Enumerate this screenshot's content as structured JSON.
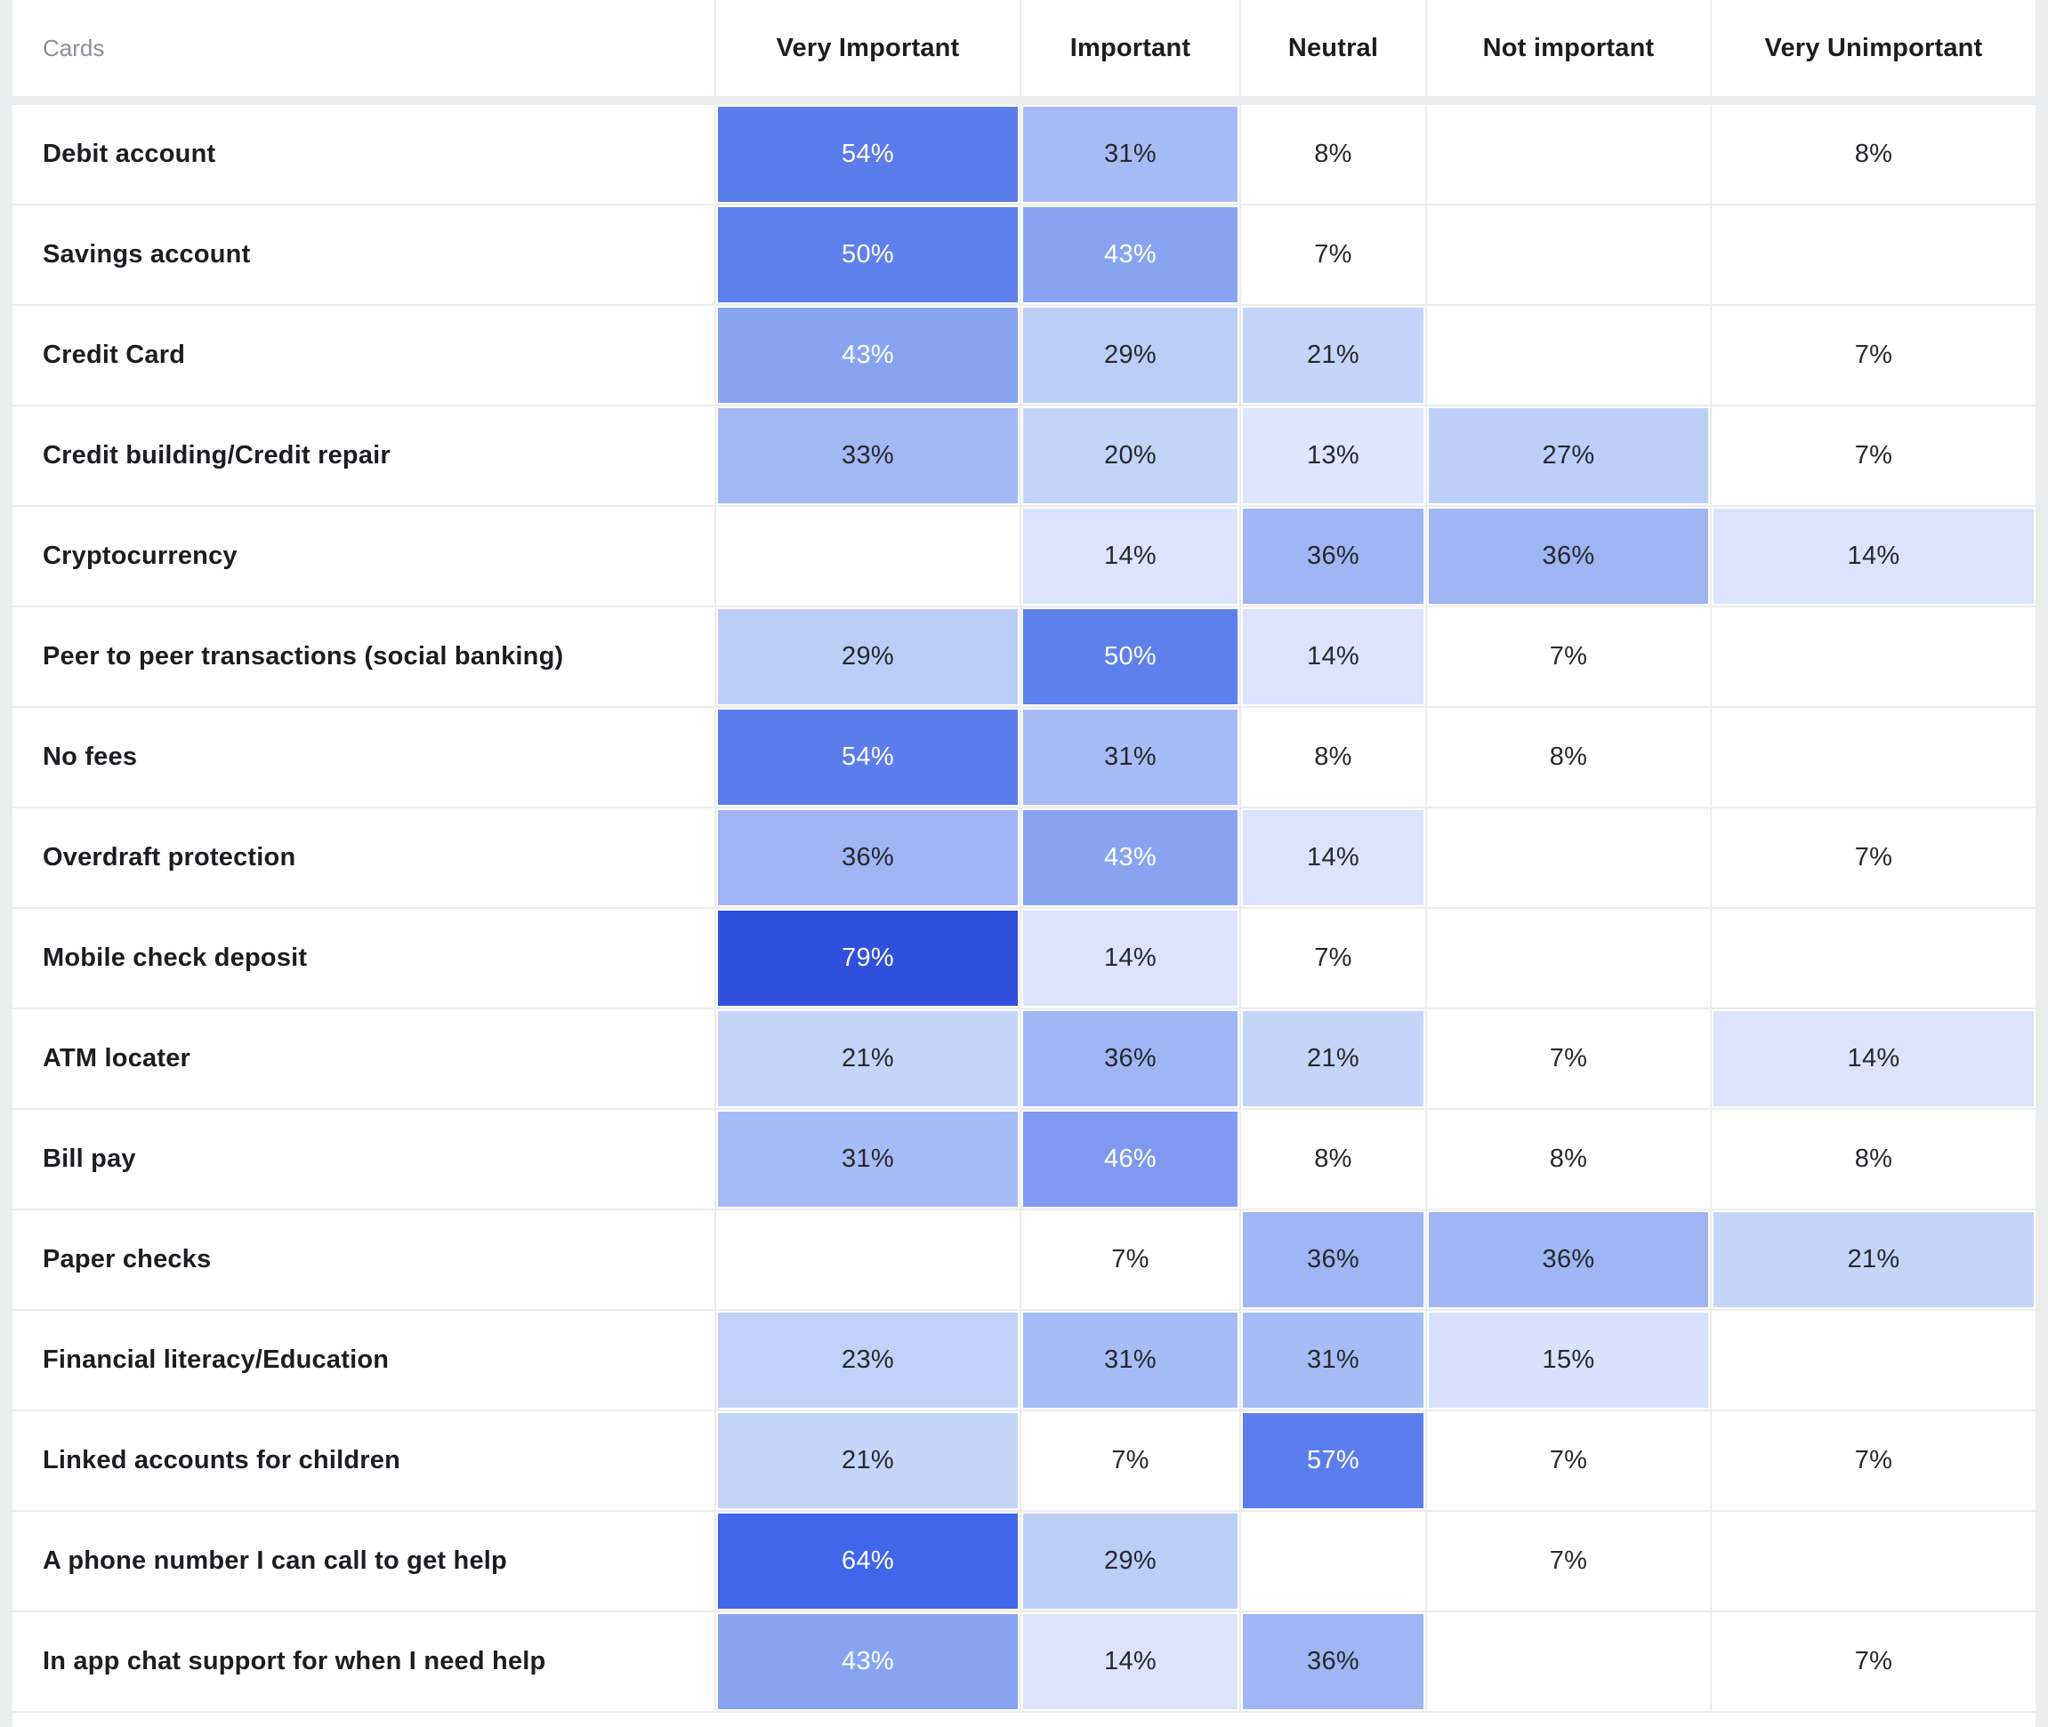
{
  "table": {
    "corner_label": "Cards"
  },
  "heatmap": {
    "text_dark": "#26282c",
    "text_light": "#ffffff",
    "white_text_min": 43,
    "grid_line_color": "#ececec",
    "page_background": "#ebecee",
    "value_colors": {
      "13": "#dce6fd",
      "14": "#dbe4fc",
      "15": "#d8e2fc",
      "20": "#c3d4f9",
      "21": "#c5d5fa",
      "23": "#c1d2f9",
      "27": "#bdcff8",
      "29": "#bbcef8",
      "31": "#a7bcf6",
      "33": "#a3b8f5",
      "36": "#9fb5f4",
      "43": "#88a4f1",
      "46": "#7e99ef",
      "50": "#5e80ec",
      "54": "#5b7deb",
      "57": "#5c7eec",
      "64": "#4166e9",
      "79": "#2f4fdc"
    }
  },
  "chart_data": {
    "type": "heatmap",
    "title": "",
    "unit": "%",
    "legend_position": "none",
    "color_scale_note": "darker blue = higher percentage; cells at 7-8% have no fill",
    "x_categories": [
      "Very Important",
      "Important",
      "Neutral",
      "Not important",
      "Very Unimportant"
    ],
    "y_categories": [
      "Debit account",
      "Savings account",
      "Credit Card",
      "Credit building/Credit repair",
      "Cryptocurrency",
      "Peer to peer transactions (social banking)",
      "No fees",
      "Overdraft protection",
      "Mobile check deposit",
      "ATM locater",
      "Bill pay",
      "Paper checks",
      "Financial literacy/Education",
      "Linked accounts for children",
      "A phone number I can call to get help",
      "In app chat support for when I need help"
    ],
    "values_percent": [
      [
        54,
        31,
        8,
        null,
        8
      ],
      [
        50,
        43,
        7,
        null,
        null
      ],
      [
        43,
        29,
        21,
        null,
        7
      ],
      [
        33,
        20,
        13,
        27,
        7
      ],
      [
        null,
        14,
        36,
        36,
        14
      ],
      [
        29,
        50,
        14,
        7,
        null
      ],
      [
        54,
        31,
        8,
        8,
        null
      ],
      [
        36,
        43,
        14,
        null,
        7
      ],
      [
        79,
        14,
        7,
        null,
        null
      ],
      [
        21,
        36,
        21,
        7,
        14
      ],
      [
        31,
        46,
        8,
        8,
        8
      ],
      [
        null,
        7,
        36,
        36,
        21
      ],
      [
        23,
        31,
        31,
        15,
        null
      ],
      [
        21,
        7,
        57,
        7,
        7
      ],
      [
        64,
        29,
        null,
        7,
        null
      ],
      [
        43,
        14,
        36,
        null,
        7
      ]
    ]
  }
}
